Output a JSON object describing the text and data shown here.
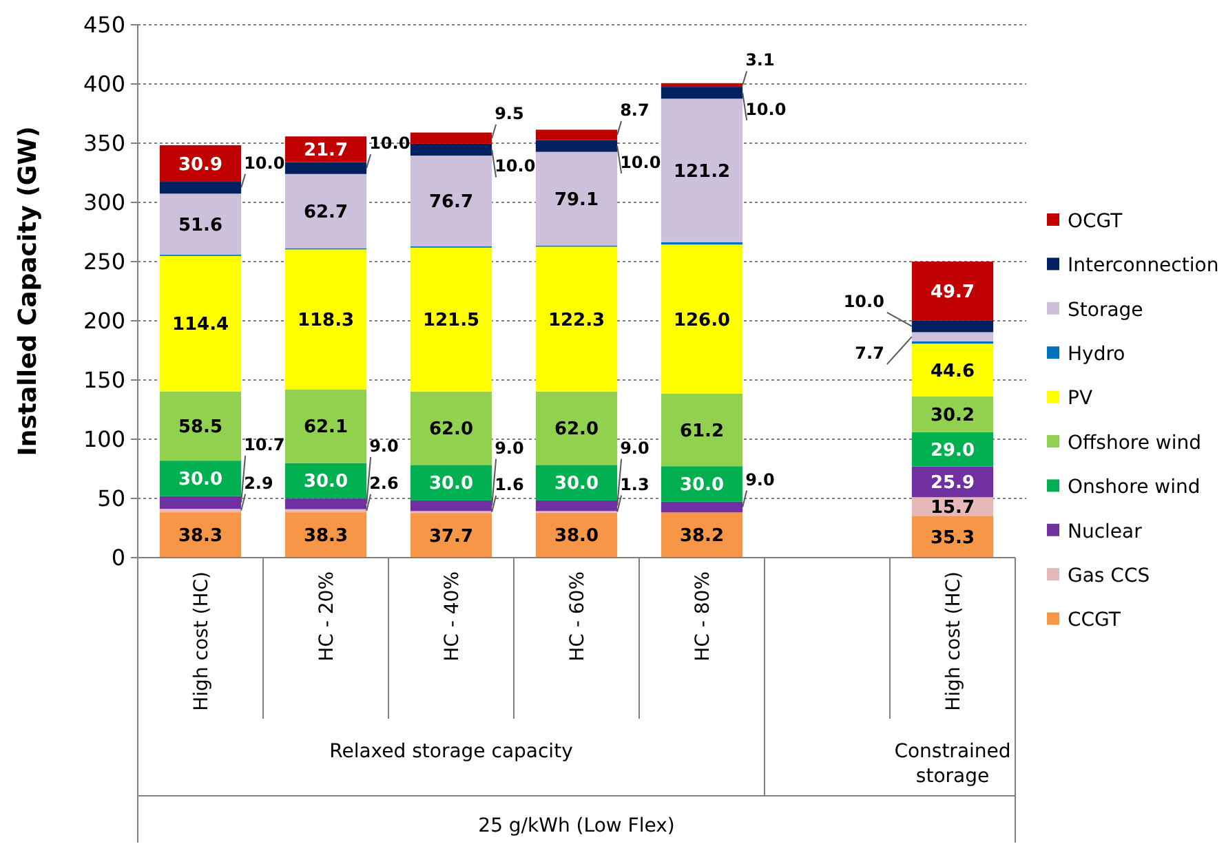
{
  "chart_data": {
    "type": "bar",
    "stacked": true,
    "ylabel": "Installed Capacity (GW)",
    "categories": [
      "High cost (HC)",
      "HC - 20%",
      "HC - 40%",
      "HC - 60%",
      "HC - 80%",
      null,
      "High cost (HC)"
    ],
    "ylim": [
      0,
      450
    ],
    "yticks": [
      0,
      50,
      100,
      150,
      200,
      250,
      300,
      350,
      400,
      450
    ],
    "grid": "y",
    "legend": "right",
    "annotations": [
      "Relaxed storage capacity",
      "Constrained storage",
      "25 g/kWh (Low Flex)"
    ],
    "series": [
      {
        "name": "CCGT",
        "color": "#f79646",
        "values": [
          38.3,
          38.3,
          37.7,
          38.0,
          38.2,
          null,
          35.3
        ],
        "value_labels": [
          "38.3",
          "38.3",
          "37.7",
          "38.0",
          "38.2",
          null,
          "35.3"
        ]
      },
      {
        "name": "Gas CCS",
        "color": "#e6b9b8",
        "values": [
          2.9,
          2.6,
          1.6,
          1.3,
          null,
          null,
          15.7
        ],
        "value_labels": [
          "2.9",
          "2.6",
          "1.6",
          "1.3",
          null,
          null,
          "15.7"
        ]
      },
      {
        "name": "Nuclear",
        "color": "#7030a0",
        "values": [
          10.7,
          9.0,
          9.0,
          9.0,
          9.0,
          null,
          25.9
        ],
        "value_labels": [
          "10.7",
          "9.0",
          "9.0",
          "9.0",
          "9.0",
          null,
          "25.9"
        ]
      },
      {
        "name": "Onshore wind",
        "color": "#00b050",
        "values": [
          30.0,
          30.0,
          30.0,
          30.0,
          30.0,
          null,
          29.0
        ],
        "value_labels": [
          "30.0",
          "30.0",
          "30.0",
          "30.0",
          "30.0",
          null,
          "29.0"
        ]
      },
      {
        "name": "Offshore wind",
        "color": "#92d050",
        "values": [
          58.5,
          62.1,
          62.0,
          62.0,
          61.2,
          null,
          30.2
        ],
        "value_labels": [
          "58.5",
          "62.1",
          "62.0",
          "62.0",
          "61.2",
          null,
          "30.2"
        ]
      },
      {
        "name": "PV",
        "color": "#ffff00",
        "values": [
          114.4,
          118.3,
          121.5,
          122.3,
          126.0,
          null,
          44.6
        ],
        "value_labels": [
          "114.4",
          "118.3",
          "121.5",
          "122.3",
          "126.0",
          null,
          "44.6"
        ]
      },
      {
        "name": "Hydro",
        "color": "#0070c0",
        "values": [
          1,
          1,
          1,
          1,
          2,
          null,
          2
        ],
        "value_labels": [
          null,
          null,
          null,
          null,
          null,
          null,
          null
        ]
      },
      {
        "name": "Storage",
        "color": "#ccc0da",
        "values": [
          51.6,
          62.7,
          76.7,
          79.1,
          121.2,
          null,
          7.7
        ],
        "value_labels": [
          "51.6",
          "62.7",
          "76.7",
          "79.1",
          "121.2",
          null,
          "7.7"
        ]
      },
      {
        "name": "Interconnection",
        "color": "#002060",
        "values": [
          10.0,
          10.0,
          10.0,
          10.0,
          10.0,
          null,
          10.0
        ],
        "value_labels": [
          "10.0",
          "10.0",
          "10.0",
          "10.0",
          "10.0",
          null,
          "10.0"
        ]
      },
      {
        "name": "OCGT",
        "color": "#c00000",
        "values": [
          30.9,
          21.7,
          9.5,
          8.7,
          3.1,
          null,
          49.7
        ],
        "value_labels": [
          "30.9",
          "21.7",
          "9.5",
          "8.7",
          "3.1",
          null,
          "49.7"
        ]
      }
    ]
  }
}
